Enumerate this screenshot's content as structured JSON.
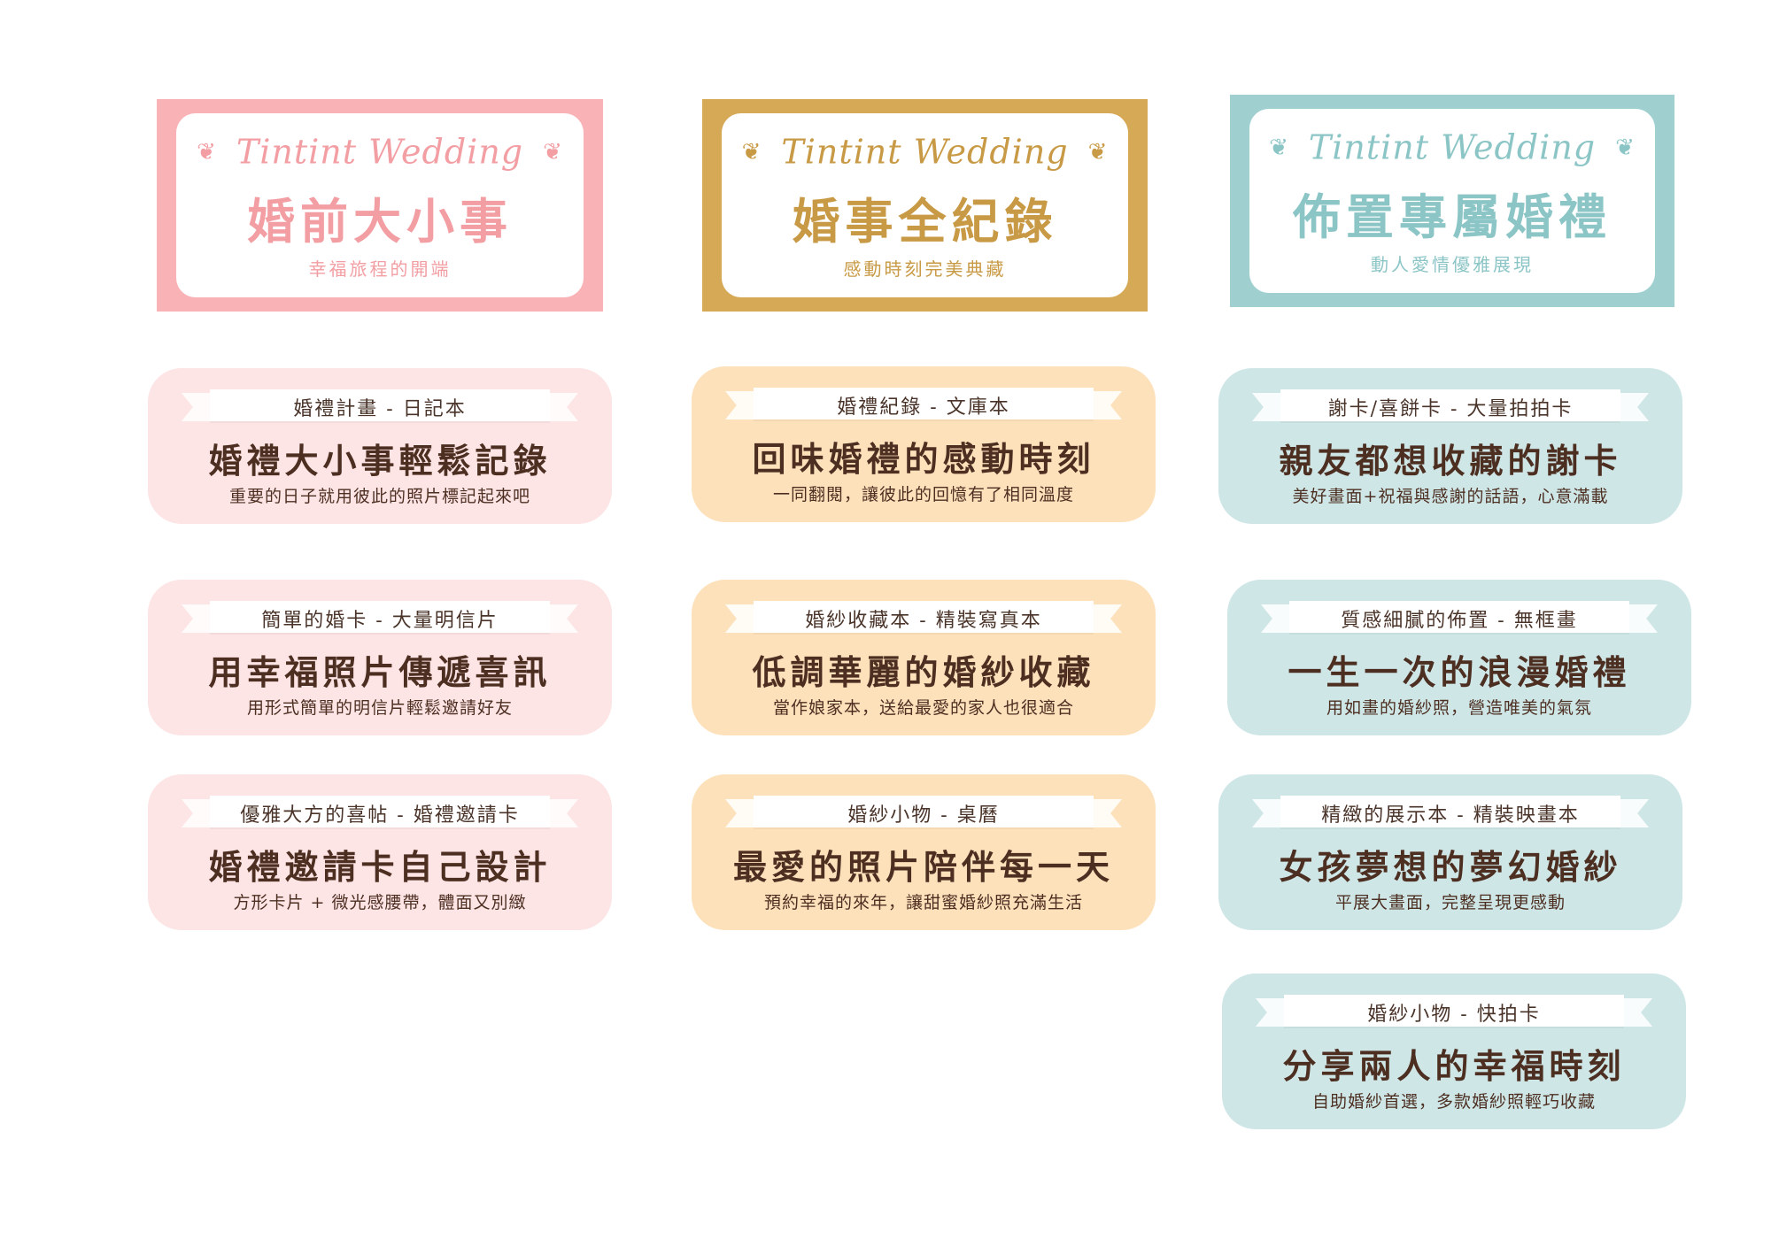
{
  "colors": {
    "pink_frame": "#f9b3b6",
    "pink_text": "#f29ea3",
    "gold_frame": "#d6a956",
    "gold_text": "#c89a45",
    "teal_frame": "#9fcfcf",
    "teal_text": "#8cc5c6",
    "pink_card": "#fde4e5",
    "peach_card": "#fde1bb",
    "blue_card": "#cfe6e7",
    "dark_text": "#4d2f22"
  },
  "headers": [
    {
      "script": "Tintint Wedding",
      "title": "婚前大小事",
      "tagline": "幸福旅程的開端",
      "icon": "leaf-icon"
    },
    {
      "script": "Tintint Wedding",
      "title": "婚事全紀錄",
      "tagline": "感動時刻完美典藏",
      "icon": "leaf-icon"
    },
    {
      "script": "Tintint Wedding",
      "title": "佈置專屬婚禮",
      "tagline": "動人愛情優雅展現",
      "icon": "leaf-icon"
    }
  ],
  "columns": {
    "pink": [
      {
        "label": "婚禮計畫 - 日記本",
        "title": "婚禮大小事輕鬆記錄",
        "subtitle": "重要的日子就用彼此的照片標記起來吧"
      },
      {
        "label": "簡單的婚卡 - 大量明信片",
        "title": "用幸福照片傳遞喜訊",
        "subtitle": "用形式簡單的明信片輕鬆邀請好友"
      },
      {
        "label": "優雅大方的喜帖 - 婚禮邀請卡",
        "title": "婚禮邀請卡自己設計",
        "subtitle": "方形卡片 + 微光感腰帶，體面又別緻"
      }
    ],
    "gold": [
      {
        "label": "婚禮紀錄 - 文庫本",
        "title": "回味婚禮的感動時刻",
        "subtitle": "一同翻閱，讓彼此的回憶有了相同溫度"
      },
      {
        "label": "婚紗收藏本 - 精裝寫真本",
        "title": "低調華麗的婚紗收藏",
        "subtitle": "當作娘家本，送給最愛的家人也很適合"
      },
      {
        "label": "婚紗小物 - 桌曆",
        "title": "最愛的照片陪伴每一天",
        "subtitle": "預約幸福的來年，讓甜蜜婚紗照充滿生活"
      }
    ],
    "teal": [
      {
        "label": "謝卡/喜餅卡 - 大量拍拍卡",
        "title": "親友都想收藏的謝卡",
        "subtitle": "美好畫面+祝福與感謝的話語，心意滿載"
      },
      {
        "label": "質感細膩的佈置 - 無框畫",
        "title": "一生一次的浪漫婚禮",
        "subtitle": "用如畫的婚紗照，營造唯美的氣氛"
      },
      {
        "label": "精緻的展示本 - 精裝映畫本",
        "title": "女孩夢想的夢幻婚紗",
        "subtitle": "平展大畫面，完整呈現更感動"
      },
      {
        "label": "婚紗小物 - 快拍卡",
        "title": "分享兩人的幸福時刻",
        "subtitle": "自助婚紗首選，多款婚紗照輕巧收藏"
      }
    ]
  }
}
